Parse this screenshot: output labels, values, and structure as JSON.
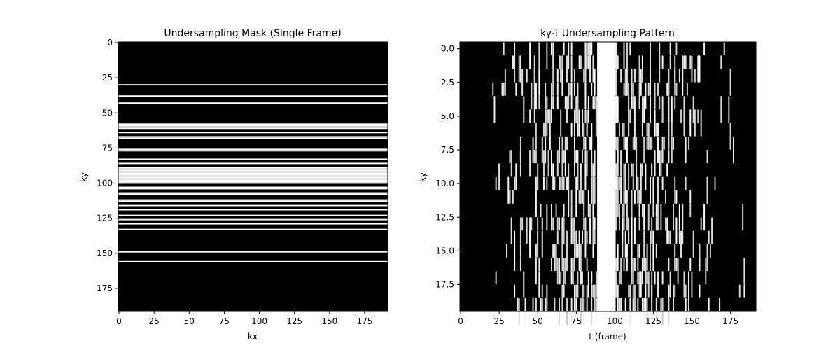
{
  "chart_data": [
    {
      "type": "heatmap",
      "title": "Undersampling Mask (Single Frame)",
      "xlabel": "kx",
      "ylabel": "ky",
      "xlim": [
        0,
        191
      ],
      "ylim": [
        191,
        0
      ],
      "xticks": [
        "0",
        "25",
        "50",
        "75",
        "100",
        "125",
        "150",
        "175"
      ],
      "yticks": [
        "0",
        "25",
        "50",
        "75",
        "100",
        "125",
        "150",
        "175"
      ],
      "colormap": "gray",
      "sampled_rows": [
        30,
        38,
        43,
        58,
        59,
        60,
        61,
        64,
        67,
        68,
        76,
        77,
        83,
        86,
        89,
        90,
        91,
        92,
        93,
        94,
        95,
        96,
        97,
        98,
        99,
        100,
        103,
        104,
        107,
        108,
        112,
        113,
        116,
        119,
        123,
        126,
        129,
        133,
        149,
        156
      ]
    },
    {
      "type": "heatmap",
      "title": "ky-t Undersampling Pattern",
      "xlabel": "t (frame)",
      "ylabel": "ky",
      "xlim": [
        0,
        191
      ],
      "ylim": [
        19.5,
        -0.5
      ],
      "xticks": [
        "0",
        "25",
        "50",
        "75",
        "100",
        "125",
        "150",
        "175"
      ],
      "yticks": [
        "0.0",
        "2.5",
        "5.0",
        "7.5",
        "10.0",
        "12.5",
        "15.0",
        "17.5"
      ],
      "colormap": "gray",
      "fully_sampled_center": [
        89,
        101
      ],
      "sampled_extent": [
        18,
        185
      ]
    }
  ]
}
